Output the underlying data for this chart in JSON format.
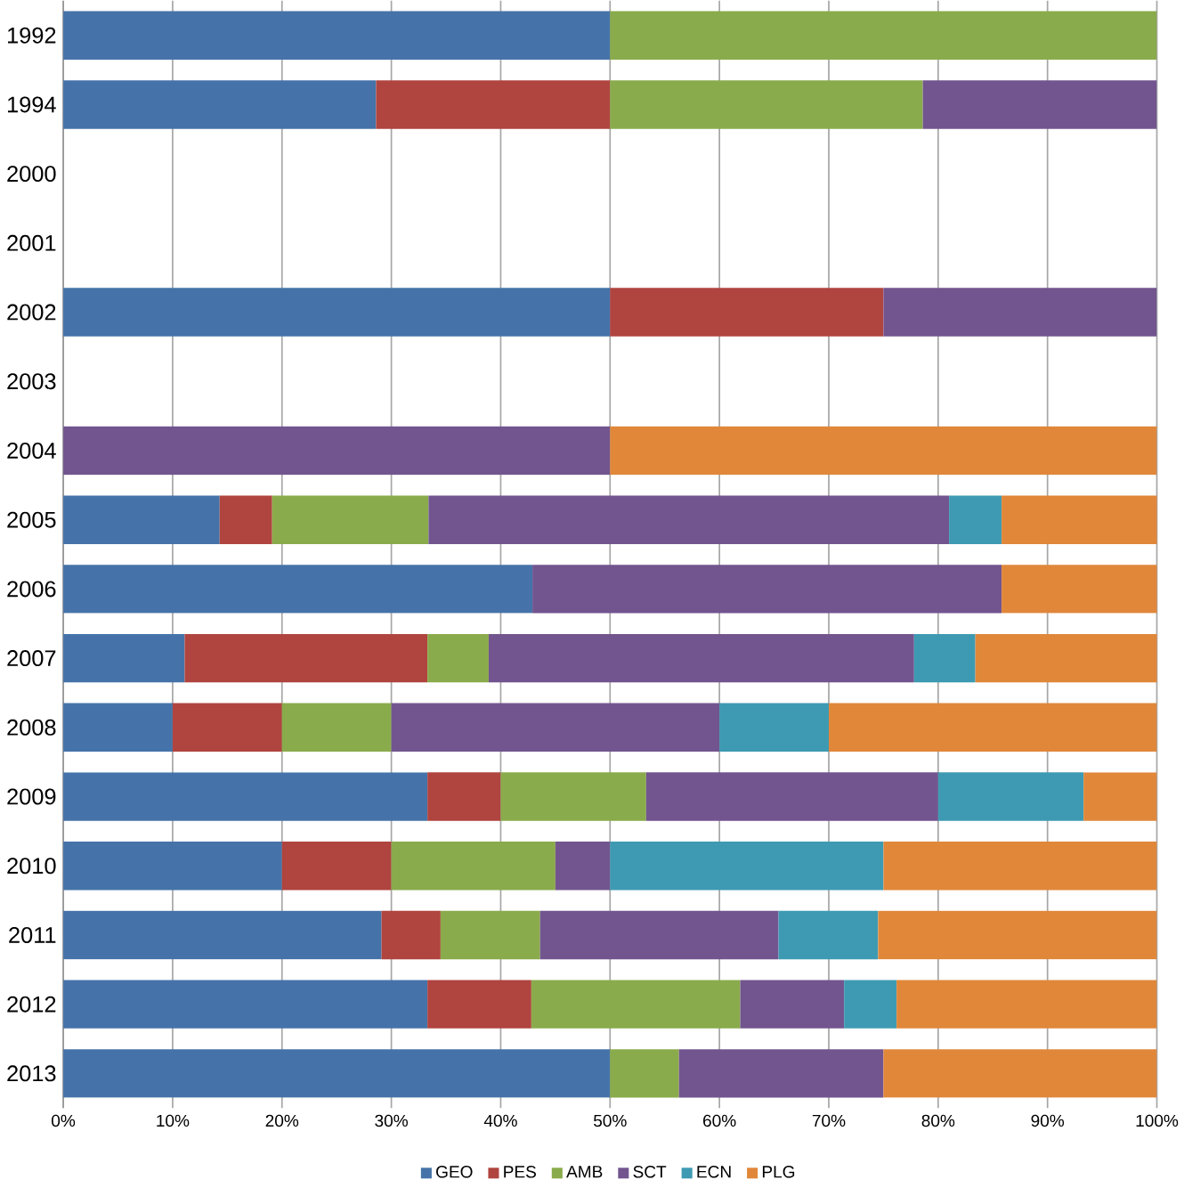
{
  "chart_data": {
    "type": "bar",
    "orientation": "horizontal",
    "stacked": true,
    "categories": [
      "1992",
      "1994",
      "2000",
      "2001",
      "2002",
      "2003",
      "2004",
      "2005",
      "2006",
      "2007",
      "2008",
      "2009",
      "2010",
      "2011",
      "2012",
      "2013"
    ],
    "series": [
      {
        "name": "GEO",
        "color": "#4573a9",
        "values": [
          50,
          28.6,
          null,
          null,
          50,
          null,
          null,
          14.3,
          42.9,
          11.1,
          10,
          33.3,
          20,
          29.1,
          33.3,
          50
        ]
      },
      {
        "name": "PES",
        "color": "#b0443f",
        "values": [
          null,
          21.4,
          null,
          null,
          25,
          null,
          null,
          4.8,
          null,
          22.2,
          10,
          6.7,
          10,
          5.4,
          9.5,
          null
        ]
      },
      {
        "name": "AMB",
        "color": "#8aab4b",
        "values": [
          50,
          28.6,
          null,
          null,
          null,
          null,
          null,
          14.3,
          null,
          5.6,
          10,
          13.3,
          15,
          9.1,
          19.1,
          6.3
        ]
      },
      {
        "name": "SCT",
        "color": "#72558f",
        "values": [
          null,
          21.4,
          null,
          null,
          25,
          null,
          50,
          47.6,
          42.9,
          38.9,
          30,
          26.7,
          5,
          21.8,
          9.5,
          18.7
        ]
      },
      {
        "name": "ECN",
        "color": "#3e9ab2",
        "values": [
          null,
          null,
          null,
          null,
          null,
          null,
          null,
          4.8,
          null,
          5.6,
          10,
          13.3,
          25,
          9.1,
          4.8,
          null
        ]
      },
      {
        "name": "PLG",
        "color": "#e0873a",
        "values": [
          null,
          null,
          null,
          null,
          null,
          null,
          50,
          14.3,
          14.3,
          16.7,
          30,
          6.7,
          25,
          25.5,
          23.8,
          25
        ]
      }
    ],
    "xlim": [
      0,
      100
    ],
    "xticks": [
      {
        "value": 0,
        "label": "0%"
      },
      {
        "value": 10,
        "label": "10%"
      },
      {
        "value": 20,
        "label": "20%"
      },
      {
        "value": 30,
        "label": "30%"
      },
      {
        "value": 40,
        "label": "40%"
      },
      {
        "value": 50,
        "label": "50%"
      },
      {
        "value": 60,
        "label": "60%"
      },
      {
        "value": 70,
        "label": "70%"
      },
      {
        "value": 80,
        "label": "80%"
      },
      {
        "value": 90,
        "label": "90%"
      },
      {
        "value": 100,
        "label": "100%"
      }
    ],
    "grid": "x",
    "legend": "bottom"
  }
}
